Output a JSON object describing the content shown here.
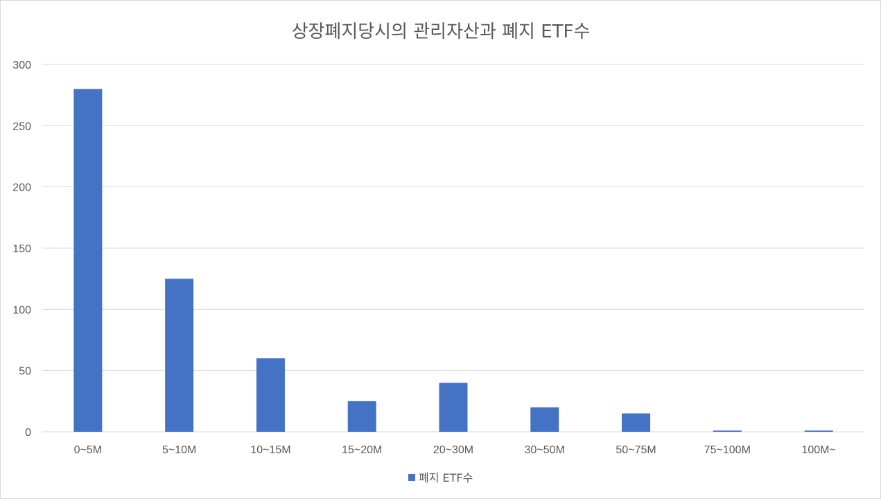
{
  "chart_data": {
    "type": "bar",
    "title": "상장폐지당시의 관리자산과 폐지 ETF수",
    "xlabel": "",
    "ylabel": "",
    "categories": [
      "0~5M",
      "5~10M",
      "10~15M",
      "15~20M",
      "20~30M",
      "30~50M",
      "50~75M",
      "75~100M",
      "100M~"
    ],
    "series": [
      {
        "name": "폐지 ETF수",
        "values": [
          280,
          125,
          60,
          25,
          40,
          20,
          15,
          1,
          1
        ],
        "color": "#4472c4"
      }
    ],
    "ylim": [
      0,
      300
    ],
    "yticks": [
      0,
      50,
      100,
      150,
      200,
      250,
      300
    ],
    "grid": true,
    "legend_position": "bottom"
  }
}
